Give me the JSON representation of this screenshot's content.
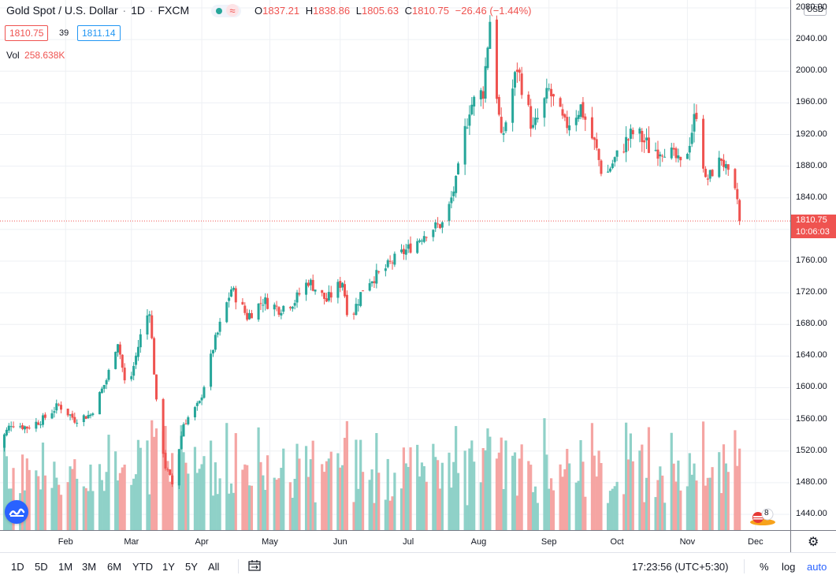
{
  "header": {
    "symbol": "Gold Spot / U.S. Dollar",
    "separator1": "·",
    "interval": "1D",
    "separator2": "·",
    "exchange": "FXCM",
    "dot_icon": "market-status-dot",
    "wave_icon": "approx-wave",
    "open_label": "O",
    "open_value": "1837.21",
    "high_label": "H",
    "high_value": "1838.86",
    "low_label": "L",
    "low_value": "1805.63",
    "close_label": "C",
    "close_value": "1810.75",
    "change": "−26.46 (−1.44%)"
  },
  "bid_ask": {
    "bid": "1810.75",
    "spread": "39",
    "ask": "1811.14"
  },
  "volume_legend": {
    "label": "Vol",
    "value": "258.638K"
  },
  "price_axis": {
    "currency": "USD",
    "current_price_tag": "1810.75",
    "countdown_tag": "10:06:03",
    "ticks": [
      "2080.00",
      "2040.00",
      "2000.00",
      "1960.00",
      "1920.00",
      "1880.00",
      "1840.00",
      "1800.00",
      "1760.00",
      "1720.00",
      "1680.00",
      "1640.00",
      "1600.00",
      "1560.00",
      "1520.00",
      "1480.00",
      "1440.00"
    ]
  },
  "time_axis": {
    "ticks": [
      "Feb",
      "Mar",
      "Apr",
      "May",
      "Jun",
      "Jul",
      "Aug",
      "Sep",
      "Oct",
      "Nov",
      "Dec"
    ]
  },
  "toolbar": {
    "ranges": [
      "1D",
      "5D",
      "1M",
      "3M",
      "6M",
      "YTD",
      "1Y",
      "5Y",
      "All"
    ],
    "time": "17:23:56 (UTC+5:30)",
    "percent": "%",
    "log": "log",
    "auto": "auto"
  },
  "events": {
    "badge_count": "8"
  },
  "colors": {
    "up": "#26a69a",
    "down": "#ef5350",
    "volume_up": "#8fd1c8",
    "volume_down": "#f5a5a3",
    "grid": "#eef0f4",
    "accent": "#2962ff"
  },
  "chart_data": {
    "type": "candlestick",
    "title": "Gold Spot / U.S. Dollar · 1D · FXCM",
    "x_ticks": [
      "Feb",
      "Mar",
      "Apr",
      "May",
      "Jun",
      "Jul",
      "Aug",
      "Sep",
      "Oct",
      "Nov",
      "Dec"
    ],
    "ylim": [
      1420,
      2090
    ],
    "current_price": 1810.75,
    "price_path": [
      {
        "date": "2020-01-01",
        "close": 1520
      },
      {
        "date": "2020-01-08",
        "close": 1555
      },
      {
        "date": "2020-01-15",
        "close": 1550
      },
      {
        "date": "2020-01-22",
        "close": 1560
      },
      {
        "date": "2020-01-29",
        "close": 1578
      },
      {
        "date": "2020-02-05",
        "close": 1560
      },
      {
        "date": "2020-02-12",
        "close": 1566
      },
      {
        "date": "2020-02-19",
        "close": 1610
      },
      {
        "date": "2020-02-24",
        "close": 1660
      },
      {
        "date": "2020-02-28",
        "close": 1590
      },
      {
        "date": "2020-03-05",
        "close": 1665
      },
      {
        "date": "2020-03-09",
        "close": 1700
      },
      {
        "date": "2020-03-12",
        "close": 1580
      },
      {
        "date": "2020-03-16",
        "close": 1500
      },
      {
        "date": "2020-03-19",
        "close": 1478
      },
      {
        "date": "2020-03-24",
        "close": 1555
      },
      {
        "date": "2020-03-31",
        "close": 1580
      },
      {
        "date": "2020-04-06",
        "close": 1650
      },
      {
        "date": "2020-04-14",
        "close": 1725
      },
      {
        "date": "2020-04-21",
        "close": 1690
      },
      {
        "date": "2020-04-28",
        "close": 1710
      },
      {
        "date": "2020-05-05",
        "close": 1700
      },
      {
        "date": "2020-05-12",
        "close": 1710
      },
      {
        "date": "2020-05-18",
        "close": 1735
      },
      {
        "date": "2020-05-26",
        "close": 1710
      },
      {
        "date": "2020-06-02",
        "close": 1735
      },
      {
        "date": "2020-06-05",
        "close": 1682
      },
      {
        "date": "2020-06-12",
        "close": 1733
      },
      {
        "date": "2020-06-19",
        "close": 1745
      },
      {
        "date": "2020-06-26",
        "close": 1765
      },
      {
        "date": "2020-07-03",
        "close": 1780
      },
      {
        "date": "2020-07-10",
        "close": 1800
      },
      {
        "date": "2020-07-17",
        "close": 1808
      },
      {
        "date": "2020-07-22",
        "close": 1860
      },
      {
        "date": "2020-07-28",
        "close": 1955
      },
      {
        "date": "2020-08-03",
        "close": 1975
      },
      {
        "date": "2020-08-06",
        "close": 2065
      },
      {
        "date": "2020-08-11",
        "close": 1910
      },
      {
        "date": "2020-08-18",
        "close": 2005
      },
      {
        "date": "2020-08-25",
        "close": 1925
      },
      {
        "date": "2020-09-01",
        "close": 1975
      },
      {
        "date": "2020-09-08",
        "close": 1930
      },
      {
        "date": "2020-09-15",
        "close": 1955
      },
      {
        "date": "2020-09-22",
        "close": 1900
      },
      {
        "date": "2020-09-25",
        "close": 1862
      },
      {
        "date": "2020-10-02",
        "close": 1900
      },
      {
        "date": "2020-10-09",
        "close": 1925
      },
      {
        "date": "2020-10-16",
        "close": 1900
      },
      {
        "date": "2020-10-23",
        "close": 1905
      },
      {
        "date": "2020-10-30",
        "close": 1878
      },
      {
        "date": "2020-11-05",
        "close": 1950
      },
      {
        "date": "2020-11-09",
        "close": 1860
      },
      {
        "date": "2020-11-16",
        "close": 1890
      },
      {
        "date": "2020-11-23",
        "close": 1838
      },
      {
        "date": "2020-11-24",
        "close": 1810
      }
    ],
    "volume_ylim": [
      0,
      200000
    ]
  }
}
